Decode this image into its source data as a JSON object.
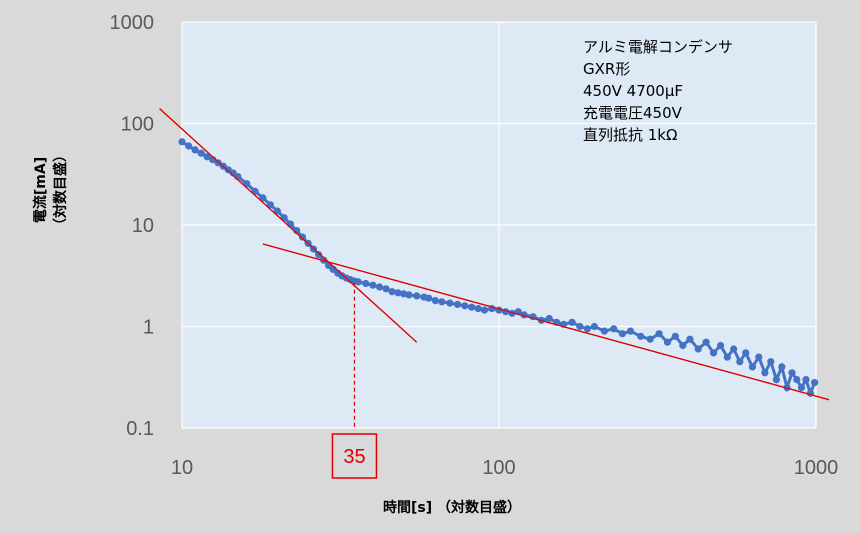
{
  "chart_data": {
    "type": "scatter",
    "x_scale": "log",
    "y_scale": "log",
    "xlim": [
      10,
      1000
    ],
    "ylim": [
      0.1,
      1000
    ],
    "x_ticks": [
      "10",
      "100",
      "1000"
    ],
    "y_ticks": [
      "1000",
      "100",
      "10",
      "1",
      "0.1"
    ],
    "xlabel": "時間[s] （対数目盛）",
    "ylabel_lines": [
      "電流[mA]",
      "（対数目盛）"
    ],
    "annotation_lines": [
      "アルミ電解コンデンサ",
      "GXR形",
      "450V 4700μF",
      "充電電圧450V",
      "直列抵抗 1kΩ"
    ],
    "marker": {
      "x": 35,
      "label": "35",
      "color": "#e00000"
    },
    "grid": true,
    "plot_background": "#dde9f5",
    "series_color": "#4472c4",
    "fit_color": "#e00000",
    "series": [
      {
        "x": [
          10,
          10.5,
          11,
          11.5,
          12,
          12.5,
          13,
          13.5,
          14,
          14.5,
          15,
          16,
          17,
          18,
          19,
          20,
          21,
          22,
          23,
          24,
          25,
          26,
          27,
          28,
          29,
          30,
          31,
          32,
          33,
          34,
          35,
          36,
          38,
          40,
          42,
          44,
          46,
          48,
          50,
          52,
          55,
          58,
          60,
          63,
          66,
          70,
          74,
          78,
          82,
          86,
          90,
          95,
          100,
          105,
          110,
          115,
          120,
          128,
          136,
          144,
          152,
          160,
          170,
          180,
          190,
          200,
          215,
          230,
          245,
          260,
          280,
          300,
          320,
          340,
          360,
          380,
          400,
          425,
          450,
          475,
          500,
          525,
          550,
          575,
          600,
          630,
          660,
          690,
          720,
          750,
          780,
          810,
          840,
          870,
          900,
          930,
          960,
          990
        ],
        "y": [
          66,
          60,
          55,
          51,
          47,
          44,
          41,
          38,
          35,
          32.5,
          30,
          25.5,
          21.5,
          18.5,
          15.8,
          13.7,
          11.8,
          10.2,
          8.8,
          7.6,
          6.6,
          5.8,
          5.1,
          4.5,
          4.0,
          3.65,
          3.35,
          3.15,
          3.0,
          2.9,
          2.8,
          2.75,
          2.65,
          2.55,
          2.45,
          2.35,
          2.2,
          2.15,
          2.1,
          2.05,
          2.0,
          1.95,
          1.9,
          1.8,
          1.75,
          1.7,
          1.65,
          1.6,
          1.55,
          1.5,
          1.45,
          1.5,
          1.45,
          1.4,
          1.35,
          1.4,
          1.3,
          1.25,
          1.15,
          1.2,
          1.1,
          1.05,
          1.1,
          1.0,
          0.95,
          1.0,
          0.9,
          0.95,
          0.85,
          0.9,
          0.8,
          0.75,
          0.85,
          0.7,
          0.8,
          0.65,
          0.75,
          0.6,
          0.7,
          0.55,
          0.65,
          0.5,
          0.6,
          0.45,
          0.55,
          0.4,
          0.5,
          0.35,
          0.45,
          0.3,
          0.4,
          0.25,
          0.35,
          0.3,
          0.25,
          0.3,
          0.22,
          0.28
        ],
        "y_spread": [
          0,
          0,
          0,
          0,
          0,
          0,
          0,
          0,
          0,
          0,
          0,
          0,
          0,
          0,
          0,
          0,
          0,
          0,
          0,
          0,
          0,
          0,
          0,
          0,
          0,
          0,
          0,
          0,
          0,
          0,
          0,
          0,
          0,
          0,
          0,
          0,
          0,
          0,
          0,
          0,
          0,
          0,
          0,
          0,
          0,
          0,
          0,
          0,
          0,
          0,
          0,
          0,
          0,
          0,
          0,
          0,
          0,
          0,
          0,
          0,
          0,
          0,
          0,
          0,
          0,
          0,
          0,
          0,
          0,
          0,
          0,
          0,
          0,
          0,
          0,
          0,
          0,
          0,
          0,
          0,
          0,
          0,
          0,
          0,
          0,
          0,
          0,
          0,
          0,
          0,
          0,
          0,
          0,
          0,
          0,
          0,
          0,
          0
        ]
      }
    ],
    "fit_lines": [
      {
        "x": [
          8.5,
          55
        ],
        "y": [
          140,
          0.7
        ]
      },
      {
        "x": [
          18,
          1100
        ],
        "y": [
          6.5,
          0.19
        ]
      }
    ]
  }
}
